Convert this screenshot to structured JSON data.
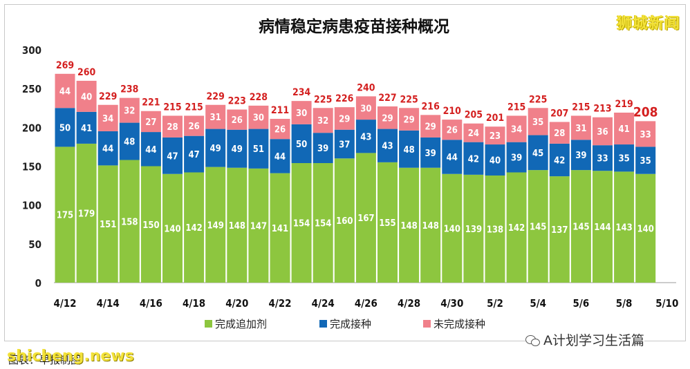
{
  "watermark_top": "狮城新闻",
  "watermark_wechat": "A计划学习生活篇",
  "site_mark": "shicheng.news",
  "caption": "图表：早报制图",
  "colors": {
    "booster": "#8dc63f",
    "completed": "#1168b6",
    "incomplete": "#f0808a",
    "total_label": "#d42020",
    "segment_label": "#ffffff",
    "axis": "#222222"
  },
  "chart_data": {
    "type": "bar",
    "stacked": true,
    "title": "病情稳定病患疫苗接种概况",
    "xlabel": "",
    "ylabel": "",
    "ylim": [
      0,
      300
    ],
    "yticks": [
      0,
      50,
      100,
      150,
      200,
      250,
      300
    ],
    "categories": [
      "4/12",
      "4/13",
      "4/14",
      "4/15",
      "4/16",
      "4/17",
      "4/18",
      "4/19",
      "4/20",
      "4/21",
      "4/22",
      "4/23",
      "4/24",
      "4/25",
      "4/26",
      "4/27",
      "4/28",
      "4/29",
      "4/30",
      "5/1",
      "5/2",
      "5/3",
      "5/4",
      "5/5",
      "5/6",
      "5/7",
      "5/8",
      "5/9"
    ],
    "xtick_labels": [
      "4/12",
      "4/14",
      "4/16",
      "4/18",
      "4/20",
      "4/22",
      "4/24",
      "4/26",
      "4/28",
      "4/30",
      "5/2",
      "5/4",
      "5/6",
      "5/8",
      "5/10"
    ],
    "series": [
      {
        "name": "完成追加剂",
        "color": "#8dc63f",
        "values": [
          175,
          179,
          151,
          158,
          150,
          140,
          142,
          149,
          148,
          147,
          141,
          154,
          154,
          160,
          167,
          155,
          148,
          148,
          140,
          139,
          138,
          142,
          145,
          137,
          145,
          144,
          143,
          140
        ]
      },
      {
        "name": "完成接种",
        "color": "#1168b6",
        "values": [
          50,
          41,
          44,
          48,
          44,
          47,
          47,
          49,
          49,
          51,
          44,
          50,
          39,
          37,
          43,
          43,
          48,
          39,
          44,
          42,
          40,
          39,
          45,
          42,
          39,
          33,
          35,
          35
        ]
      },
      {
        "name": "未完成接种",
        "color": "#f0808a",
        "values": [
          44,
          40,
          34,
          32,
          27,
          28,
          26,
          31,
          26,
          30,
          26,
          30,
          32,
          29,
          30,
          29,
          29,
          29,
          26,
          24,
          23,
          34,
          35,
          28,
          31,
          36,
          41,
          33
        ]
      }
    ],
    "totals": [
      269,
      260,
      229,
      238,
      221,
      215,
      215,
      229,
      223,
      228,
      211,
      234,
      225,
      226,
      240,
      227,
      225,
      216,
      210,
      205,
      201,
      215,
      225,
      207,
      215,
      213,
      219,
      208
    ],
    "legend": {
      "position": "bottom",
      "entries": [
        "完成追加剂",
        "完成接种",
        "未完成接种"
      ]
    }
  }
}
